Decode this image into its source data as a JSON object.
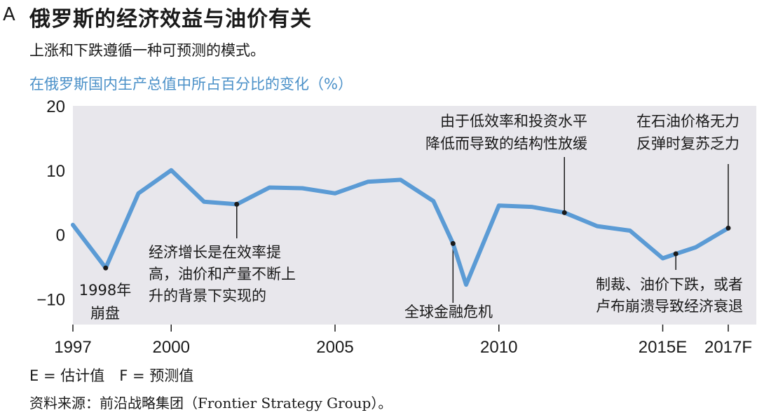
{
  "panel_letter": "A",
  "title": "俄罗斯的经济效益与油价有关",
  "subtitle": "上涨和下跌遵循一种可预测的模式。",
  "legend_note": "E = 估计值　F = 预测值",
  "source": "资料来源：前沿战略集团（Frontier Strategy Group）。",
  "colors": {
    "line": "#5b9bd5",
    "plot_bg": "#e8e7ec",
    "heading": "#4a90c8"
  },
  "chart_data": {
    "type": "line",
    "title": "在俄罗斯国内生产总值中所占百分比的变化（%）",
    "x": [
      1997,
      1998,
      1999,
      2000,
      2001,
      2002,
      2003,
      2004,
      2005,
      2006,
      2007,
      2008,
      2008.6,
      2009,
      2010,
      2011,
      2012,
      2013,
      2014,
      2015,
      2015.4,
      2016,
      2017
    ],
    "y": [
      1.5,
      -5.2,
      6.4,
      10.0,
      5.1,
      4.7,
      7.3,
      7.2,
      6.4,
      8.2,
      8.5,
      5.2,
      -1.4,
      -7.8,
      4.5,
      4.3,
      3.4,
      1.3,
      0.6,
      -3.7,
      -3.0,
      -2.0,
      1.0
    ],
    "ylim": [
      -14,
      20
    ],
    "xlim": [
      1997,
      2017
    ],
    "yticks": [
      20,
      10,
      0,
      -10
    ],
    "ytick_labels": [
      "20",
      "10",
      "0",
      "−10"
    ],
    "xticks": [
      1997,
      2000,
      2005,
      2010,
      2015,
      2017
    ],
    "xtick_labels": [
      "1997",
      "2000",
      "2005",
      "2010",
      "2015E",
      "2017F"
    ],
    "grid": false,
    "annotations": [
      {
        "x": 1998,
        "y": -5.2,
        "lines": [
          "1998年",
          "崩盘"
        ]
      },
      {
        "x": 2002,
        "y": 4.7,
        "lines": [
          "经济增长是在效率提",
          "高，油价和产量不断上",
          "升的背景下实现的"
        ]
      },
      {
        "x": 2008.6,
        "y": -1.4,
        "lines": [
          "全球金融危机"
        ]
      },
      {
        "x": 2012,
        "y": 3.4,
        "lines": [
          "由于低效率和投资水平",
          "降低而导致的结构性放缓"
        ]
      },
      {
        "x": 2015.4,
        "y": -3.0,
        "lines": [
          "制裁、油价下跌，或者",
          "卢布崩溃导致经济衰退"
        ]
      },
      {
        "x": 2017,
        "y": 1.0,
        "lines": [
          "在石油价格无力",
          "反弹时复苏乏力"
        ]
      }
    ]
  }
}
